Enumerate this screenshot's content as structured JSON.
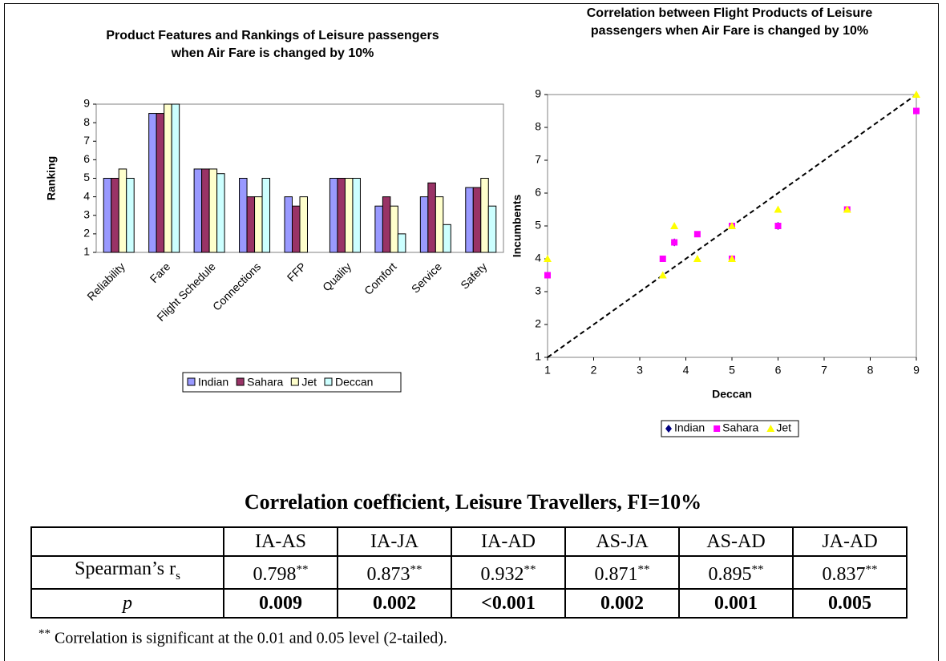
{
  "chart_data": [
    {
      "type": "bar",
      "title": "Product Features and Rankings of Leisure passengers when Air Fare is changed by 10%",
      "y_label": "Ranking",
      "categories": [
        "Reliability",
        "Fare",
        "Flight Schedule",
        "Connections",
        "FFP",
        "Quality",
        "Comfort",
        "Service",
        "Safety"
      ],
      "series": [
        {
          "name": "Indian",
          "color": "#9999ff",
          "values": [
            5,
            8.5,
            5.5,
            5,
            4,
            5,
            3.5,
            4,
            4.5
          ]
        },
        {
          "name": "Sahara",
          "color": "#993366",
          "values": [
            5,
            8.5,
            5.5,
            4,
            3.5,
            5,
            4,
            4.75,
            4.5
          ]
        },
        {
          "name": "Jet",
          "color": "#ffffcc",
          "values": [
            5.5,
            9,
            5.5,
            4,
            4,
            5,
            3.5,
            4,
            5
          ]
        },
        {
          "name": "Deccan",
          "color": "#ccffff",
          "values": [
            5,
            9,
            5.25,
            5,
            1,
            5,
            2,
            2.5,
            3.5
          ]
        }
      ],
      "ylim": [
        1,
        9
      ],
      "yticks": [
        1,
        2,
        3,
        4,
        5,
        6,
        7,
        8,
        9
      ],
      "grid": false,
      "legend": "bottom"
    },
    {
      "type": "scatter",
      "title": "Correlation between Flight Products of Leisure passengers when Air Fare is changed by 10%",
      "x_label": "Deccan",
      "y_label": "Incumbents",
      "series": [
        {
          "name": "Indian",
          "color": "#000080",
          "marker": "diamond",
          "x": [
            3.75,
            6
          ],
          "values": [
            4.5,
            5
          ]
        },
        {
          "name": "Sahara",
          "color": "#ff00ff",
          "marker": "square",
          "x": [
            1,
            3.5,
            3.75,
            4.25,
            5,
            5,
            6,
            7.5,
            9
          ],
          "values": [
            3.5,
            4,
            4.5,
            4.75,
            5,
            4,
            5,
            5.5,
            8.5
          ]
        },
        {
          "name": "Jet",
          "color": "#ffff00",
          "marker": "triangle",
          "x": [
            1,
            3.5,
            3.75,
            4.25,
            5,
            5,
            6,
            7.5,
            9
          ],
          "values": [
            4,
            3.5,
            5,
            4,
            5,
            4,
            5.5,
            5.5,
            9
          ]
        }
      ],
      "xlim": [
        1,
        9
      ],
      "xticks": [
        1,
        2,
        3,
        4,
        5,
        6,
        7,
        8,
        9
      ],
      "ylim": [
        1,
        9
      ],
      "yticks": [
        1,
        2,
        3,
        4,
        5,
        6,
        7,
        8,
        9
      ],
      "grid": false,
      "legend": "bottom"
    }
  ],
  "table": {
    "title": "Correlation coefficient, Leisure Travellers, FI=10%",
    "columns": [
      "IA-AS",
      "IA-JA",
      "IA-AD",
      "AS-JA",
      "AS-AD",
      "JA-AD"
    ],
    "rows": [
      {
        "label": "Spearman’s r",
        "label_sub": "s",
        "values": [
          "0.798",
          "0.873",
          "0.932",
          "0.871",
          "0.895",
          "0.837"
        ],
        "marker": "**"
      },
      {
        "label": "p",
        "values": [
          "0.009",
          "0.002",
          "<0.001",
          "0.002",
          "0.001",
          "0.005"
        ]
      }
    ],
    "footnote": {
      "marker": "**",
      "text": "Correlation is significant at the 0.01 and 0.05 level (2-tailed)."
    }
  }
}
